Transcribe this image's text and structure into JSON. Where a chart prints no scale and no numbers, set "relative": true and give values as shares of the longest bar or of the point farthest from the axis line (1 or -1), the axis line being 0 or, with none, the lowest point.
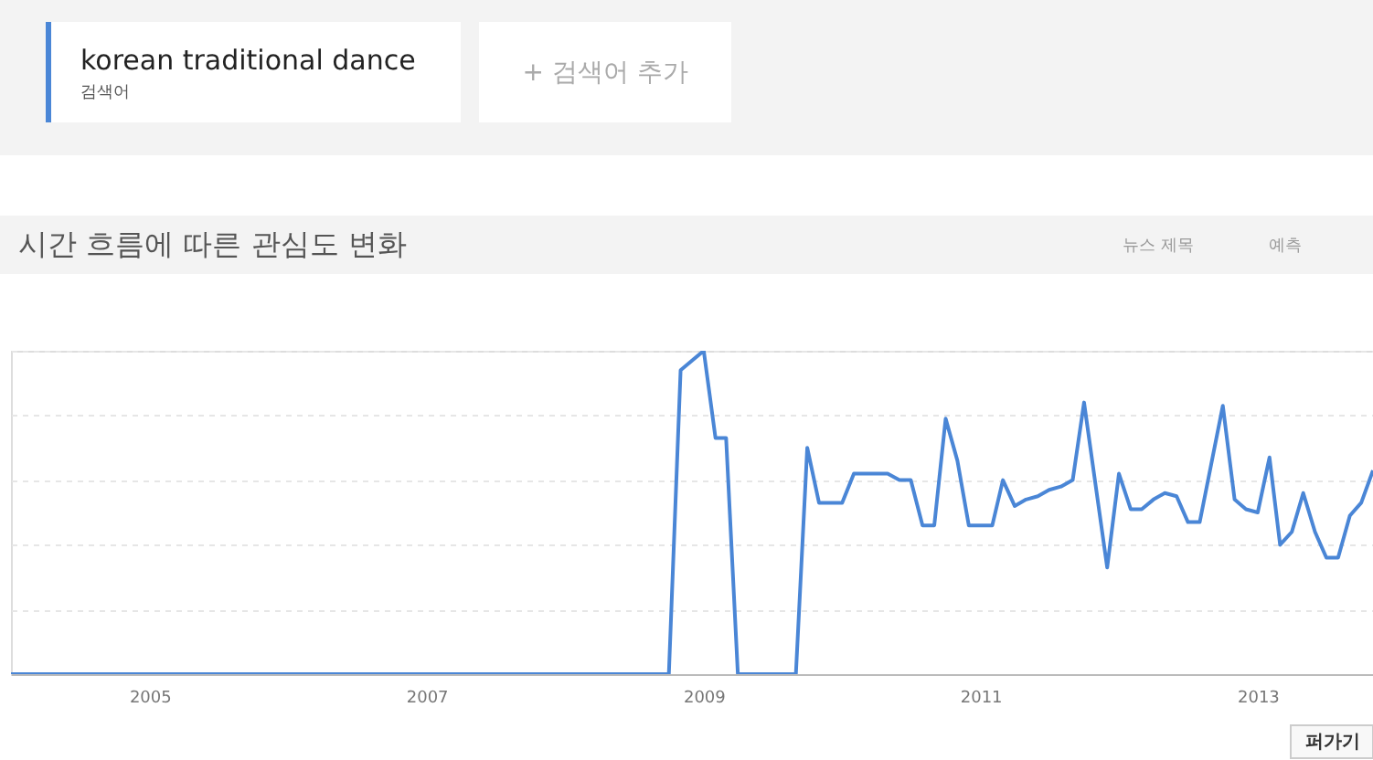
{
  "chart_data": {
    "type": "line",
    "title": "시간 흐름에 따른 관심도 변화",
    "relative": true,
    "tick_labels": "x",
    "grid": "y",
    "legend": "top left",
    "marker": "none",
    "line_style": "solid",
    "xlim": [
      "2004-01",
      "2013-11"
    ],
    "xticks": [
      "2005",
      "2007",
      "2009",
      "2011",
      "2013"
    ],
    "x": [
      "2004-01",
      "2008-10",
      "2008-11",
      "2009-01",
      "2009-02",
      "2009-03",
      "2009-04",
      "2009-09",
      "2009-10",
      "2009-11",
      "2010-01",
      "2010-02",
      "2010-05",
      "2010-06",
      "2010-07",
      "2010-08",
      "2010-09",
      "2010-10",
      "2010-11",
      "2010-12",
      "2011-02",
      "2011-03",
      "2011-04",
      "2011-05",
      "2011-06",
      "2011-07",
      "2011-08",
      "2011-09",
      "2011-10",
      "2011-11",
      "2011-12",
      "2012-01",
      "2012-02",
      "2012-03",
      "2012-04",
      "2012-05",
      "2012-06",
      "2012-07",
      "2012-08",
      "2012-10",
      "2012-11",
      "2012-12",
      "2013-01",
      "2013-02",
      "2013-03",
      "2013-04",
      "2013-05",
      "2013-06",
      "2013-07",
      "2013-08",
      "2013-09",
      "2013-10",
      "2013-11"
    ],
    "series": [
      {
        "name": "korean traditional dance",
        "color": "#4a86d6",
        "values": [
          0,
          0,
          0.94,
          1.0,
          0.73,
          0.73,
          0,
          0,
          0.7,
          0.53,
          0.53,
          0.62,
          0.62,
          0.6,
          0.6,
          0.46,
          0.46,
          0.79,
          0.66,
          0.46,
          0.46,
          0.6,
          0.52,
          0.54,
          0.55,
          0.57,
          0.58,
          0.6,
          0.84,
          0.58,
          0.33,
          0.62,
          0.51,
          0.51,
          0.54,
          0.56,
          0.55,
          0.47,
          0.47,
          0.83,
          0.54,
          0.51,
          0.5,
          0.67,
          0.4,
          0.44,
          0.56,
          0.44,
          0.36,
          0.36,
          0.49,
          0.53,
          0.63
        ]
      }
    ],
    "annotations": [
      "검색어",
      "+ 검색어 추가",
      "뉴스 제목",
      "예측",
      "퍼가기"
    ]
  }
}
